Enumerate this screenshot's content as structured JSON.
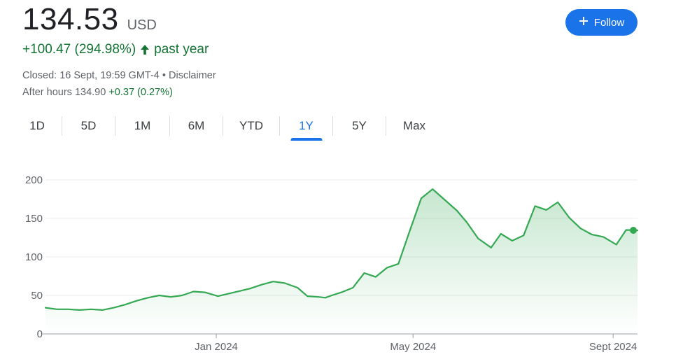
{
  "quote": {
    "price": "134.53",
    "currency": "USD",
    "change": "+100.47 (294.98%)",
    "change_arrow_icon": "arrow-up-icon",
    "period": "past year",
    "closed": "Closed: 16 Sept, 19:59 GMT-4",
    "separator": " • ",
    "disclaimer": "Disclaimer",
    "after_hours_label": "After hours",
    "after_hours_price": "134.90",
    "after_hours_change": "+0.37 (0.27%)"
  },
  "follow_button": {
    "label": "Follow",
    "icon": "plus-icon"
  },
  "tabs": [
    {
      "label": "1D",
      "active": false
    },
    {
      "label": "5D",
      "active": false
    },
    {
      "label": "1M",
      "active": false
    },
    {
      "label": "6M",
      "active": false
    },
    {
      "label": "YTD",
      "active": false
    },
    {
      "label": "1Y",
      "active": true
    },
    {
      "label": "5Y",
      "active": false
    },
    {
      "label": "Max",
      "active": false
    }
  ],
  "colors": {
    "accent": "#1a73e8",
    "positive": "#137333",
    "line": "#34a853",
    "text": "#202124",
    "muted": "#5f6368"
  },
  "chart_data": {
    "type": "area",
    "title": "",
    "xlabel": "",
    "ylabel": "",
    "ylim": [
      0,
      200
    ],
    "xlim": [
      "2023-09-18",
      "2024-09-16"
    ],
    "yticks": [
      "200",
      "150",
      "100",
      "50",
      "0"
    ],
    "yticks_values": [
      200,
      150,
      100,
      50,
      0
    ],
    "xticks": [
      {
        "label": "Jan 2024",
        "date": "2024-01-01"
      },
      {
        "label": "May 2024",
        "date": "2024-05-01"
      },
      {
        "label": "Sept 2024",
        "date": "2024-09-01"
      }
    ],
    "grid": true,
    "series": [
      {
        "x": [
          "2023-09-18",
          "2023-09-25",
          "2023-10-02",
          "2023-10-09",
          "2023-10-16",
          "2023-10-23",
          "2023-10-30",
          "2023-11-06",
          "2023-11-13",
          "2023-11-20",
          "2023-11-27",
          "2023-12-04",
          "2023-12-11",
          "2023-12-18",
          "2023-12-25",
          "2024-01-02",
          "2024-01-08",
          "2024-01-16",
          "2024-01-22",
          "2024-01-29",
          "2024-02-05",
          "2024-02-12",
          "2024-02-20",
          "2024-02-26",
          "2024-03-04",
          "2024-03-08",
          "2024-03-12",
          "2024-03-18",
          "2024-03-25",
          "2024-04-01",
          "2024-04-08",
          "2024-04-15",
          "2024-04-22",
          "2024-04-29",
          "2024-05-06",
          "2024-05-13",
          "2024-05-20",
          "2024-05-28",
          "2024-06-03",
          "2024-06-10",
          "2024-06-18",
          "2024-06-24",
          "2024-07-01",
          "2024-07-08",
          "2024-07-15",
          "2024-07-22",
          "2024-07-29",
          "2024-08-05",
          "2024-08-12",
          "2024-08-19",
          "2024-08-26",
          "2024-09-03",
          "2024-09-09",
          "2024-09-16"
        ],
        "values": [
          34,
          32,
          32,
          31,
          32,
          31,
          34,
          38,
          43,
          47,
          50,
          48,
          50,
          55,
          54,
          49,
          52,
          56,
          59,
          64,
          68,
          66,
          60,
          49,
          48,
          47,
          50,
          54,
          60,
          79,
          74,
          86,
          91,
          134,
          176,
          188,
          175,
          160,
          145,
          124,
          112,
          130,
          121,
          128,
          166,
          161,
          171,
          151,
          137,
          129,
          126,
          116,
          135,
          134.53
        ]
      }
    ],
    "last_value": 134.53
  }
}
